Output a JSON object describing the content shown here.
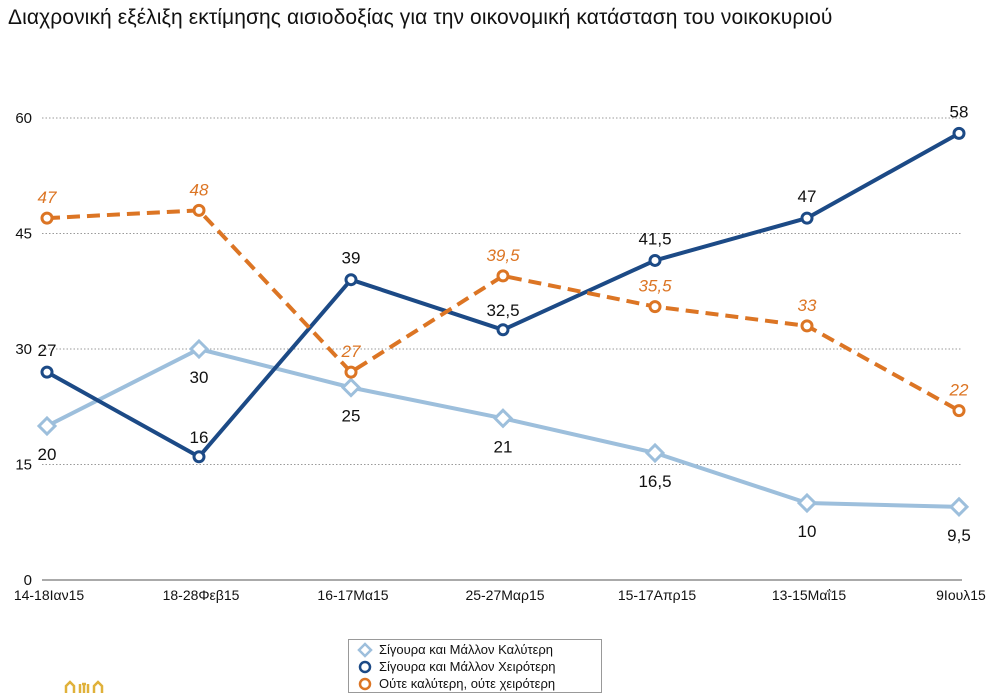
{
  "title": "Διαχρονική εξέλιξη εκτίμησης αισιοδοξίας για την οικονομική κατάσταση του νοικοκυριού",
  "chart_data": {
    "type": "line",
    "title": "Διαχρονική εξέλιξη εκτίμησης αισιοδοξίας για την οικονομική κατάσταση του νοικοκυριού",
    "categories": [
      "14-18Ιαν15",
      "18-28Φεβ15",
      "16-17Μα15",
      "25-27Μαρ15",
      "15-17Απρ15",
      "13-15Μαΐ15",
      "9Ιουλ15"
    ],
    "yticks": [
      "0",
      "15",
      "30",
      "45",
      "60"
    ],
    "ylim": [
      0,
      60
    ],
    "grid": true,
    "legend_position": "bottom",
    "series": [
      {
        "name": "Σίγουρα και Μάλλον Καλύτερη",
        "values": [
          20,
          30,
          25,
          21,
          16.5,
          10,
          9.5
        ],
        "labels": [
          "20",
          "30",
          "25",
          "21",
          "16,5",
          "10",
          "9,5"
        ],
        "color": "#9dbfdc",
        "marker": "diamond",
        "dashed": false
      },
      {
        "name": "Σίγουρα και Μάλλον Χειρότερη",
        "values": [
          27,
          16,
          39,
          32.5,
          41.5,
          47,
          58
        ],
        "labels": [
          "27",
          "16",
          "39",
          "32,5",
          "41,5",
          "47",
          "58"
        ],
        "color": "#1c4a86",
        "marker": "circle",
        "dashed": false
      },
      {
        "name": "Ούτε καλύτερη, ούτε χειρότερη",
        "values": [
          47,
          48,
          27,
          39.5,
          35.5,
          33,
          22
        ],
        "labels": [
          "47",
          "48",
          "27",
          "39,5",
          "35,5",
          "33",
          "22"
        ],
        "color": "#dc7524",
        "marker": "circle",
        "dashed": true
      }
    ]
  },
  "logo": {
    "name": "logo-fragment",
    "color": "#e0b13a"
  }
}
